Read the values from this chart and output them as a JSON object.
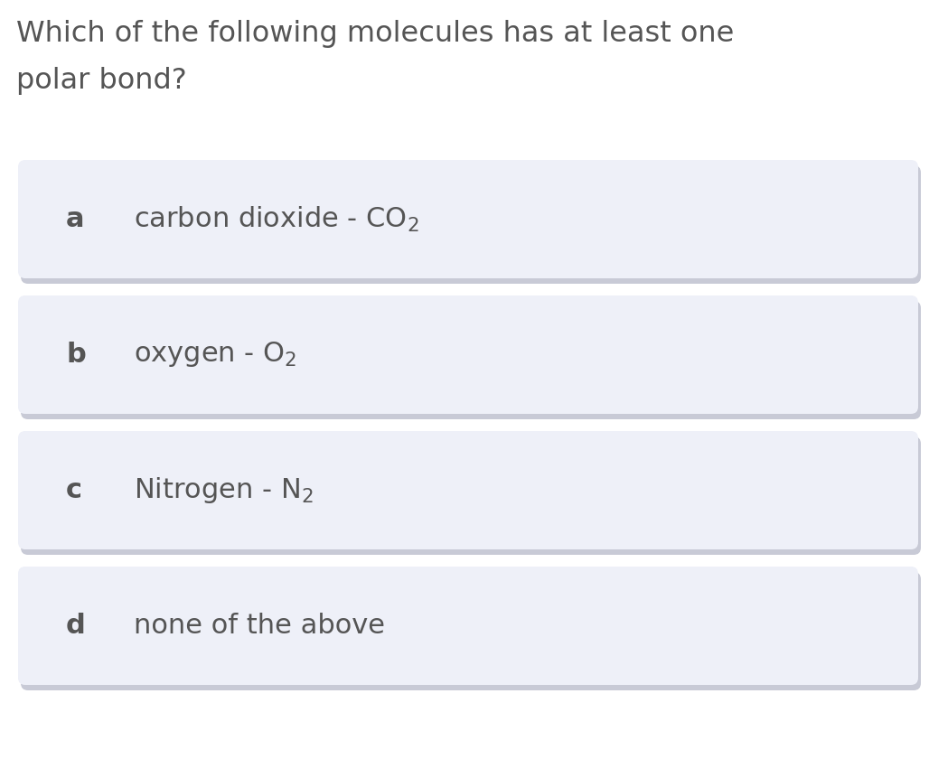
{
  "title_line1": "Which of the following molecules has at least one",
  "title_line2": "polar bond?",
  "title_fontsize": 23,
  "title_color": "#555555",
  "bg_color": "#ffffff",
  "card_bg_color": "#eef0f8",
  "card_shadow_color": "#c8cad6",
  "card_text_color": "#555555",
  "options": [
    {
      "label": "a",
      "text": "carbon dioxide - CO",
      "sub": "2"
    },
    {
      "label": "b",
      "text": "oxygen - O",
      "sub": "2"
    },
    {
      "label": "c",
      "text": "Nitrogen - N",
      "sub": "2"
    },
    {
      "label": "d",
      "text": "none of the above",
      "sub": ""
    }
  ],
  "card_fontsize": 22,
  "label_fontsize": 22,
  "fig_width": 10.28,
  "fig_height": 8.61,
  "dpi": 100
}
